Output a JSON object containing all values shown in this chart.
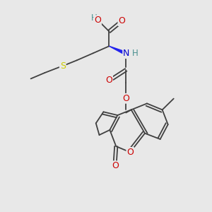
{
  "bg_color": "#e8e8e8",
  "bond_color": "#404040",
  "atom_colors": {
    "O": "#cc0000",
    "N": "#0000cc",
    "S": "#cccc00",
    "H_teal": "#4a9090"
  }
}
